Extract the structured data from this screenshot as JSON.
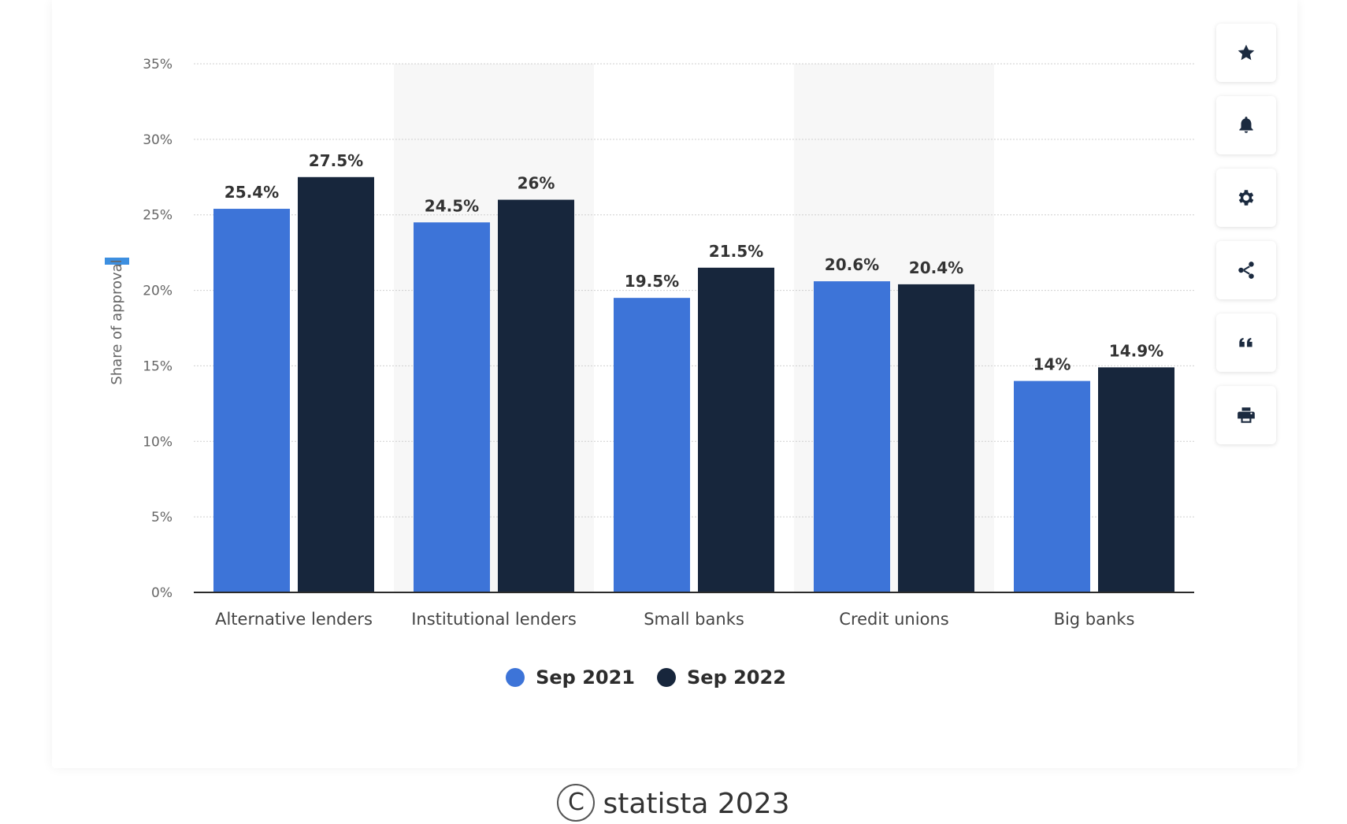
{
  "chart_data": {
    "type": "bar",
    "categories": [
      "Alternative lenders",
      "Institutional lenders",
      "Small banks",
      "Credit unions",
      "Big banks"
    ],
    "series": [
      {
        "name": "Sep 2021",
        "color": "#3d74d8",
        "values": [
          25.4,
          24.5,
          19.5,
          20.6,
          14
        ]
      },
      {
        "name": "Sep 2022",
        "color": "#17263c",
        "values": [
          27.5,
          26,
          21.5,
          20.4,
          14.9
        ]
      }
    ],
    "value_labels": [
      [
        "25.4%",
        "24.5%",
        "19.5%",
        "20.6%",
        "14%"
      ],
      [
        "27.5%",
        "26%",
        "21.5%",
        "20.4%",
        "14.9%"
      ]
    ],
    "ylabel": "Share of approval",
    "ylim": [
      0,
      35
    ],
    "yticks": [
      0,
      5,
      10,
      15,
      20,
      25,
      30,
      35
    ],
    "ytick_labels": [
      "0%",
      "5%",
      "10%",
      "15%",
      "20%",
      "25%",
      "30%",
      "35%"
    ],
    "grid": true,
    "legend_position": "bottom-center"
  },
  "toolbar": {
    "buttons": [
      {
        "icon": "star-icon"
      },
      {
        "icon": "bell-icon"
      },
      {
        "icon": "gear-icon"
      },
      {
        "icon": "share-icon"
      },
      {
        "icon": "quote-icon"
      },
      {
        "icon": "print-icon"
      }
    ]
  },
  "footer": {
    "copyright_symbol": "C",
    "text": "statista 2023"
  }
}
